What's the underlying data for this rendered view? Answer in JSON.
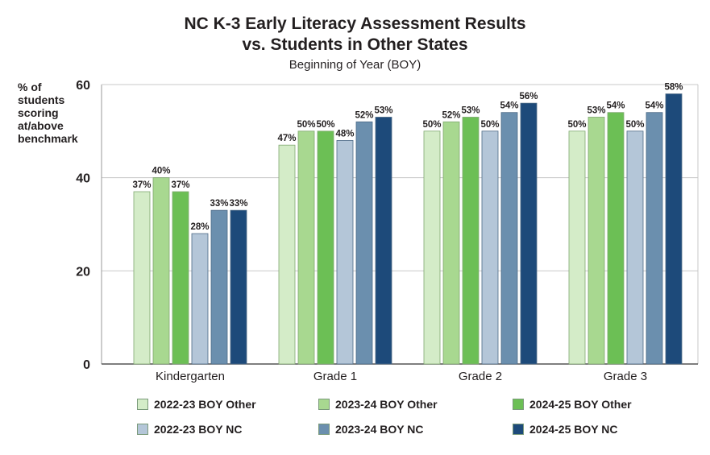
{
  "chart_data": {
    "type": "bar",
    "title": "NC K-3 Early Literacy Assessment Results",
    "title_line2": "vs. Students in Other States",
    "subtitle": "Beginning of Year (BOY)",
    "ylabel": [
      "% of",
      "students",
      "scoring",
      "at/above",
      "benchmark"
    ],
    "ylim": [
      0,
      60
    ],
    "yticks": [
      0,
      20,
      40,
      60
    ],
    "grid": true,
    "categories": [
      "Kindergarten",
      "Grade 1",
      "Grade 2",
      "Grade 3"
    ],
    "series": [
      {
        "name": "2022-23 BOY Other",
        "color": "#d4ecc8",
        "values": [
          37,
          47,
          50,
          50
        ],
        "labels": [
          "37%",
          "47%",
          "50%",
          "50%"
        ]
      },
      {
        "name": "2023-24 BOY Other",
        "color": "#a8d890",
        "values": [
          40,
          50,
          52,
          53
        ],
        "labels": [
          "40%",
          "50%",
          "52%",
          "53%"
        ]
      },
      {
        "name": "2024-25 BOY Other",
        "color": "#6cbf55",
        "values": [
          37,
          50,
          53,
          54
        ],
        "labels": [
          "37%",
          "50%",
          "53%",
          "54%"
        ]
      },
      {
        "name": "2022-23 BOY NC",
        "color": "#b4c6d8",
        "values": [
          28,
          48,
          50,
          50
        ],
        "labels": [
          "28%",
          "48%",
          "50%",
          "50%"
        ]
      },
      {
        "name": "2023-24 BOY NC",
        "color": "#6b8fae",
        "values": [
          33,
          52,
          54,
          54
        ],
        "labels": [
          "33%",
          "52%",
          "54%",
          "54%"
        ]
      },
      {
        "name": "2024-25 BOY NC",
        "color": "#1d4a7a",
        "values": [
          33,
          53,
          56,
          58
        ],
        "labels": [
          "33%",
          "53%",
          "56%",
          "58%"
        ]
      }
    ],
    "legend_position": "bottom"
  }
}
